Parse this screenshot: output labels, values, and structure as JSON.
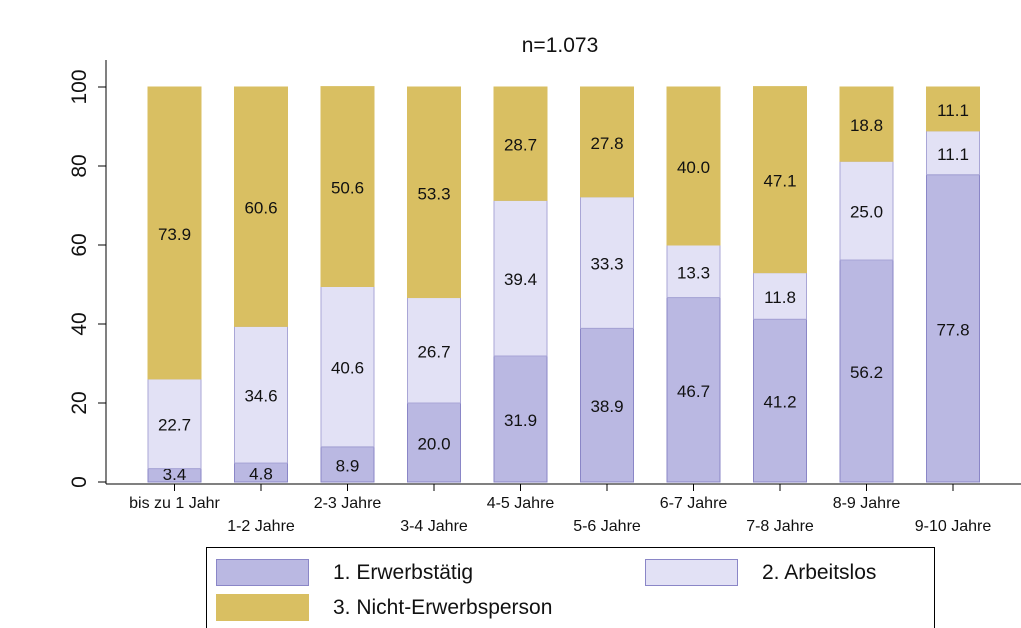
{
  "chart_data": {
    "type": "bar",
    "stacked": true,
    "title": "n=1.073",
    "xlabel": "",
    "ylabel": "",
    "ylim": [
      0,
      100
    ],
    "yticks": [
      0,
      20,
      40,
      60,
      80,
      100
    ],
    "grid": false,
    "legend_position": "bottom",
    "categories": [
      "bis zu 1 Jahr",
      "1-2 Jahre",
      "2-3 Jahre",
      "3-4 Jahre",
      "4-5 Jahre",
      "5-6 Jahre",
      "6-7 Jahre",
      "7-8 Jahre",
      "8-9 Jahre",
      "9-10 Jahre"
    ],
    "series": [
      {
        "name": "1. Erwerbstätig",
        "color": "#bab8e2",
        "values": [
          3.4,
          4.8,
          8.9,
          20.0,
          31.9,
          38.9,
          46.7,
          41.2,
          56.2,
          77.8
        ]
      },
      {
        "name": "2. Arbeitslos",
        "color": "#e2e1f5",
        "values": [
          22.7,
          34.6,
          40.6,
          26.7,
          39.4,
          33.3,
          13.3,
          11.8,
          25.0,
          11.1
        ]
      },
      {
        "name": "3. Nicht-Erwerbsperson",
        "color": "#d9bf62",
        "values": [
          73.9,
          60.6,
          50.6,
          53.3,
          28.7,
          27.8,
          40.0,
          47.1,
          18.8,
          11.1
        ]
      }
    ]
  }
}
